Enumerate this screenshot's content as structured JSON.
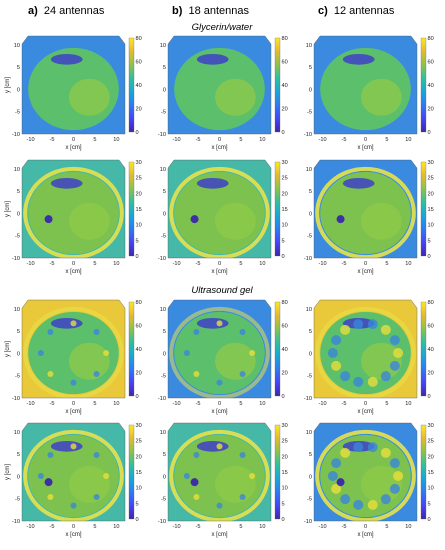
{
  "columns": [
    {
      "letter": "a)",
      "label": "24 antennas"
    },
    {
      "letter": "b)",
      "label": "18 antennas"
    },
    {
      "letter": "c)",
      "label": "12 antennas"
    }
  ],
  "sections": [
    "Glycerin/water",
    "Ultrasound gel"
  ],
  "colors": {
    "colormap": [
      "#3e26a8",
      "#4743f8",
      "#2d7af4",
      "#18a7d8",
      "#2fbfa0",
      "#8bc34a",
      "#e2bb2f",
      "#fde725"
    ],
    "background_high": "#e9c93a",
    "background_mid": "#46b8a8",
    "background_low": "#3a8be0"
  },
  "chart_data": [
    {
      "type": "heatmap",
      "panel": "a-glycerin-permittivity",
      "xlabel": "x [cm]",
      "ylabel": "y [cm]",
      "xticks": [
        -10,
        -5,
        0,
        5,
        10
      ],
      "yticks": [
        -10,
        -5,
        0,
        5,
        10
      ],
      "xlim": [
        -12,
        12
      ],
      "ylim": [
        -10,
        12
      ],
      "colorbar_ticks": [
        0,
        20,
        40,
        60,
        80
      ],
      "colorbar_range": [
        0,
        80
      ]
    },
    {
      "type": "heatmap",
      "panel": "b-glycerin-permittivity",
      "xlabel": "x [cm]",
      "ylabel": "",
      "xticks": [
        -10,
        -5,
        0,
        5,
        10
      ],
      "yticks": [
        -10,
        -5,
        0,
        5,
        10
      ],
      "xlim": [
        -12,
        12
      ],
      "ylim": [
        -10,
        12
      ],
      "colorbar_ticks": [
        0,
        20,
        40,
        60,
        80
      ],
      "colorbar_range": [
        0,
        80
      ]
    },
    {
      "type": "heatmap",
      "panel": "c-glycerin-permittivity",
      "xlabel": "x [cm]",
      "ylabel": "",
      "xticks": [
        -10,
        -5,
        0,
        5,
        10
      ],
      "yticks": [
        -10,
        -5,
        0,
        5,
        10
      ],
      "xlim": [
        -12,
        12
      ],
      "ylim": [
        -10,
        12
      ],
      "colorbar_ticks": [
        0,
        20,
        40,
        60,
        80
      ],
      "colorbar_range": [
        0,
        80
      ]
    },
    {
      "type": "heatmap",
      "panel": "a-glycerin-conductivity",
      "xlabel": "x [cm]",
      "ylabel": "y [cm]",
      "xticks": [
        -10,
        -5,
        0,
        5,
        10
      ],
      "yticks": [
        -10,
        -5,
        0,
        5,
        10
      ],
      "xlim": [
        -12,
        12
      ],
      "ylim": [
        -10,
        12
      ],
      "colorbar_ticks": [
        0,
        5,
        10,
        15,
        20,
        25,
        30
      ],
      "colorbar_range": [
        0,
        30
      ]
    },
    {
      "type": "heatmap",
      "panel": "b-glycerin-conductivity",
      "xlabel": "x [cm]",
      "ylabel": "",
      "xticks": [
        -10,
        -5,
        0,
        5,
        10
      ],
      "yticks": [
        -10,
        -5,
        0,
        5,
        10
      ],
      "xlim": [
        -12,
        12
      ],
      "ylim": [
        -10,
        12
      ],
      "colorbar_ticks": [
        0,
        5,
        10,
        15,
        20,
        25,
        30
      ],
      "colorbar_range": [
        0,
        30
      ]
    },
    {
      "type": "heatmap",
      "panel": "c-glycerin-conductivity",
      "xlabel": "x [cm]",
      "ylabel": "",
      "xticks": [
        -10,
        -5,
        0,
        5,
        10
      ],
      "yticks": [
        -10,
        -5,
        0,
        5,
        10
      ],
      "xlim": [
        -12,
        12
      ],
      "ylim": [
        -10,
        12
      ],
      "colorbar_ticks": [
        0,
        5,
        10,
        15,
        20,
        25,
        30
      ],
      "colorbar_range": [
        0,
        30
      ]
    },
    {
      "type": "heatmap",
      "panel": "a-gel-permittivity",
      "xlabel": "x [cm]",
      "ylabel": "y [cm]",
      "xticks": [
        -10,
        -5,
        0,
        5,
        10
      ],
      "yticks": [
        -10,
        -5,
        0,
        5,
        10
      ],
      "xlim": [
        -12,
        12
      ],
      "ylim": [
        -10,
        12
      ],
      "colorbar_ticks": [
        0,
        20,
        40,
        60,
        80
      ],
      "colorbar_range": [
        0,
        80
      ]
    },
    {
      "type": "heatmap",
      "panel": "b-gel-permittivity",
      "xlabel": "x [cm]",
      "ylabel": "",
      "xticks": [
        -10,
        -5,
        0,
        5,
        10
      ],
      "yticks": [
        -10,
        -5,
        0,
        5,
        10
      ],
      "xlim": [
        -12,
        12
      ],
      "ylim": [
        -10,
        12
      ],
      "colorbar_ticks": [
        0,
        20,
        40,
        60,
        80
      ],
      "colorbar_range": [
        0,
        80
      ]
    },
    {
      "type": "heatmap",
      "panel": "c-gel-permittivity",
      "xlabel": "x [cm]",
      "ylabel": "",
      "xticks": [
        -10,
        -5,
        0,
        5,
        10
      ],
      "yticks": [
        -10,
        -5,
        0,
        5,
        10
      ],
      "xlim": [
        -12,
        12
      ],
      "ylim": [
        -10,
        12
      ],
      "colorbar_ticks": [
        0,
        20,
        40,
        60,
        80
      ],
      "colorbar_range": [
        0,
        80
      ]
    },
    {
      "type": "heatmap",
      "panel": "a-gel-conductivity",
      "xlabel": "x [cm]",
      "ylabel": "y [cm]",
      "xticks": [
        -10,
        -5,
        0,
        5,
        10
      ],
      "yticks": [
        -10,
        -5,
        0,
        5,
        10
      ],
      "xlim": [
        -12,
        12
      ],
      "ylim": [
        -10,
        12
      ],
      "colorbar_ticks": [
        0,
        5,
        10,
        15,
        20,
        25,
        30
      ],
      "colorbar_range": [
        0,
        30
      ]
    },
    {
      "type": "heatmap",
      "panel": "b-gel-conductivity",
      "xlabel": "x [cm]",
      "ylabel": "",
      "xticks": [
        -10,
        -5,
        0,
        5,
        10
      ],
      "yticks": [
        -10,
        -5,
        0,
        5,
        10
      ],
      "xlim": [
        -12,
        12
      ],
      "ylim": [
        -10,
        12
      ],
      "colorbar_ticks": [
        0,
        5,
        10,
        15,
        20,
        25,
        30
      ],
      "colorbar_range": [
        0,
        30
      ]
    },
    {
      "type": "heatmap",
      "panel": "c-gel-conductivity",
      "xlabel": "x [cm]",
      "ylabel": "",
      "xticks": [
        -10,
        -5,
        0,
        5,
        10
      ],
      "yticks": [
        -10,
        -5,
        0,
        5,
        10
      ],
      "xlim": [
        -12,
        12
      ],
      "ylim": [
        -10,
        12
      ],
      "colorbar_ticks": [
        0,
        5,
        10,
        15,
        20,
        25,
        30
      ],
      "colorbar_range": [
        0,
        30
      ]
    }
  ]
}
